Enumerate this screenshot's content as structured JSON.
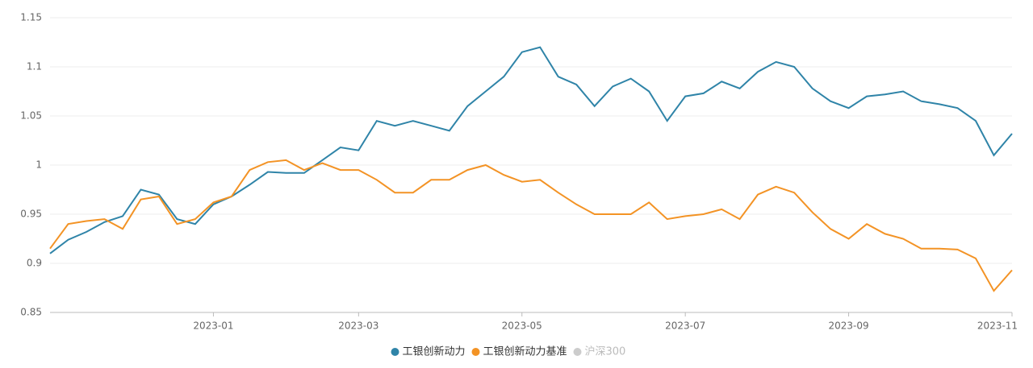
{
  "chart_data": {
    "type": "line",
    "categories": [
      null,
      null,
      null,
      null,
      null,
      null,
      null,
      null,
      null,
      "2023-01",
      null,
      null,
      null,
      null,
      null,
      null,
      null,
      "2023-03",
      null,
      null,
      null,
      null,
      null,
      null,
      null,
      null,
      "2023-05",
      null,
      null,
      null,
      null,
      null,
      null,
      null,
      null,
      "2023-07",
      null,
      null,
      null,
      null,
      null,
      null,
      null,
      null,
      "2023-09",
      null,
      null,
      null,
      null,
      null,
      null,
      null,
      null,
      "2023-11"
    ],
    "series": [
      {
        "name": "工银创新动力",
        "color": "#2f84a8",
        "values": [
          0.91,
          0.924,
          0.932,
          0.942,
          0.948,
          0.975,
          0.97,
          0.945,
          0.94,
          0.96,
          0.968,
          0.98,
          0.993,
          0.992,
          0.992,
          1.005,
          1.018,
          1.015,
          1.045,
          1.04,
          1.045,
          1.04,
          1.035,
          1.06,
          1.075,
          1.09,
          1.115,
          1.12,
          1.09,
          1.082,
          1.06,
          1.08,
          1.088,
          1.075,
          1.045,
          1.07,
          1.073,
          1.085,
          1.078,
          1.095,
          1.105,
          1.1,
          1.078,
          1.065,
          1.058,
          1.07,
          1.072,
          1.075,
          1.065,
          1.062,
          1.058,
          1.045,
          1.01,
          1.032
        ]
      },
      {
        "name": "工银创新动力基准",
        "color": "#f39325",
        "values": [
          0.915,
          0.94,
          0.943,
          0.945,
          0.935,
          0.965,
          0.968,
          0.94,
          0.945,
          0.962,
          0.968,
          0.995,
          1.003,
          1.005,
          0.995,
          1.002,
          0.995,
          0.995,
          0.985,
          0.972,
          0.972,
          0.985,
          0.985,
          0.995,
          1.0,
          0.99,
          0.983,
          0.985,
          0.972,
          0.96,
          0.95,
          0.95,
          0.95,
          0.962,
          0.945,
          0.948,
          0.95,
          0.955,
          0.945,
          0.97,
          0.978,
          0.972,
          0.952,
          0.935,
          0.925,
          0.94,
          0.93,
          0.925,
          0.915,
          0.915,
          0.914,
          0.905,
          0.872,
          0.893
        ]
      }
    ],
    "inactive_legend": {
      "name": "沪深300",
      "color": "#cccccc"
    },
    "ylim": [
      0.85,
      1.15
    ],
    "yticks": [
      0.85,
      0.9,
      0.95,
      1,
      1.05,
      1.1,
      1.15
    ],
    "grid": true
  }
}
